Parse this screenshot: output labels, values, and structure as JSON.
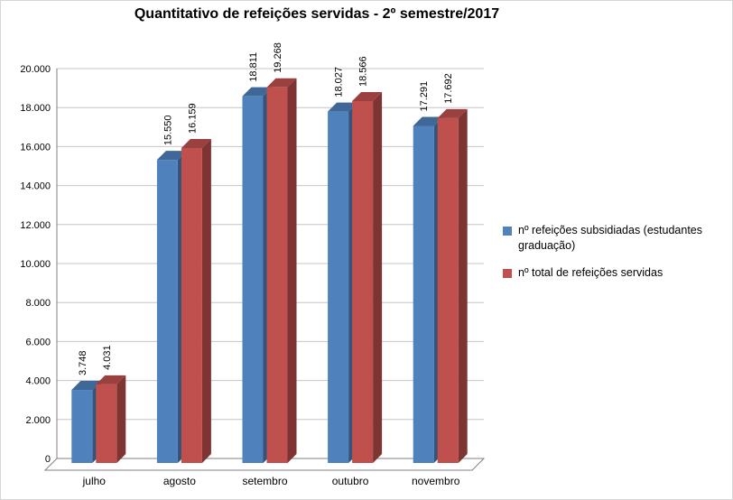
{
  "chart_data": {
    "type": "bar",
    "subtype": "3d-clustered-column",
    "title": "Quantitativo de refeições servidas - 2º semestre/2017",
    "categories": [
      "julho",
      "agosto",
      "setembro",
      "outubro",
      "novembro"
    ],
    "series": [
      {
        "key": "subsidiadas",
        "name": "nº refeições subsidiadas (estudantes graduação)",
        "color": "#4F81BD",
        "color_top": "#3F6797",
        "color_side": "#33547B",
        "values": [
          3748,
          15550,
          18811,
          18027,
          17291
        ],
        "labels": [
          "3.748",
          "15.550",
          "18.811",
          "18.027",
          "17.291"
        ]
      },
      {
        "key": "total",
        "name": "nº total de refeições servidas",
        "color": "#C0504D",
        "color_top": "#9A403E",
        "color_side": "#7D3432",
        "values": [
          4031,
          16159,
          19268,
          18566,
          17692
        ],
        "labels": [
          "4.031",
          "16.159",
          "19.268",
          "18.566",
          "17.692"
        ]
      }
    ],
    "ylim": [
      0,
      20000
    ],
    "ytick_step": 2000,
    "ytick_labels": [
      "0",
      "2.000",
      "4.000",
      "6.000",
      "8.000",
      "10.000",
      "12.000",
      "14.000",
      "16.000",
      "18.000",
      "20.000"
    ],
    "grid": true,
    "legend_position": "right",
    "axis_color": "#808080",
    "gridline_color": "#C6C6C6",
    "label_color": "#000000"
  }
}
